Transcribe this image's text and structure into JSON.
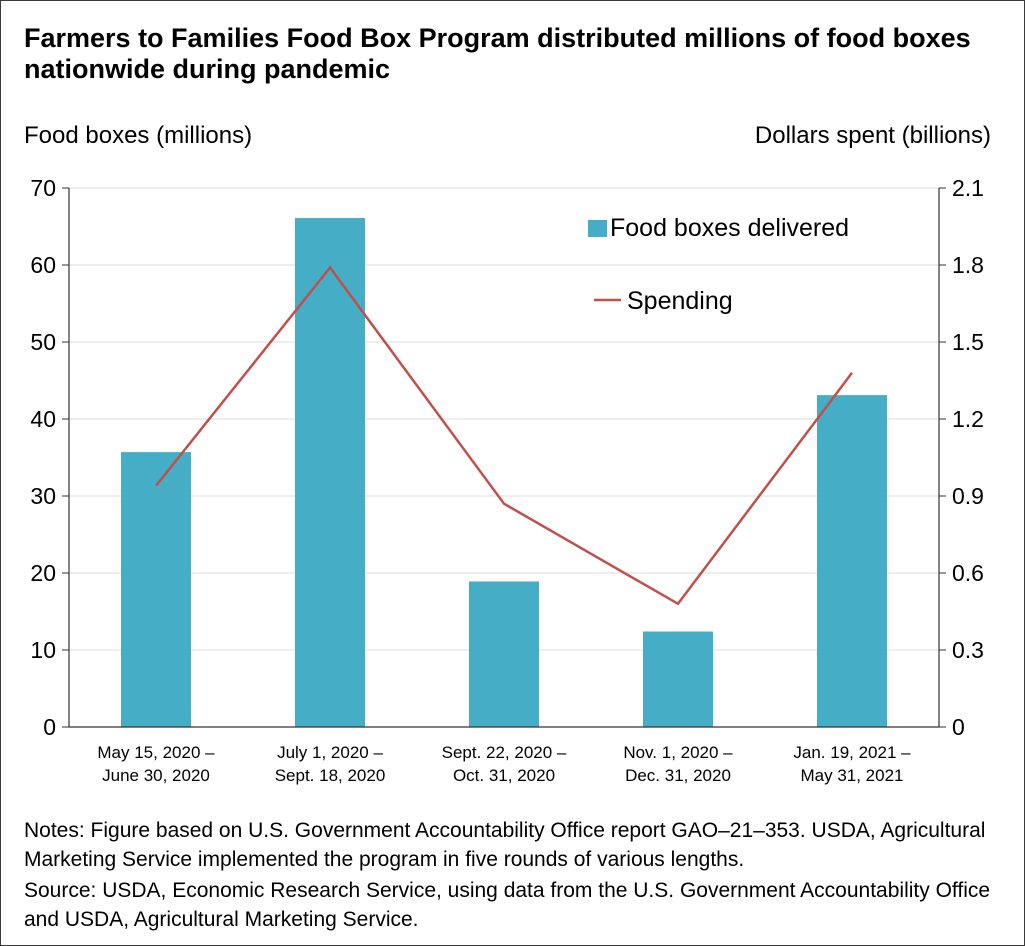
{
  "title": "Farmers to Families Food Box Program distributed millions of food boxes nationwide during pandemic",
  "notes": "Notes: Figure based on U.S. Government Accountability Office report GAO–21–353. USDA, Agricultural Marketing Service implemented the program in five rounds of various lengths.",
  "source": "Source: USDA, Economic Research Service, using data from the U.S. Government Accountability Office and USDA, Agricultural Marketing Service.",
  "colors": {
    "bar": "#45aec6",
    "line": "#c0504d",
    "axis": "#333333",
    "grid": "#dcdcdc"
  },
  "chart_data": {
    "type": "bar",
    "title": "Farmers to Families Food Box Program distributed millions of food boxes nationwide during pandemic",
    "categories": [
      [
        "May 15, 2020 –",
        "June 30, 2020"
      ],
      [
        "July 1, 2020 –",
        "Sept. 18, 2020"
      ],
      [
        "Sept. 22, 2020 –",
        "Oct. 31, 2020"
      ],
      [
        "Nov. 1, 2020 –",
        "Dec. 31, 2020"
      ],
      [
        "Jan. 19, 2021 –",
        "May 31, 2021"
      ]
    ],
    "ylabel": "Food boxes (millions)",
    "y2label": "Dollars spent (billions)",
    "ylim": [
      0,
      70
    ],
    "y2lim": [
      0,
      2.1
    ],
    "yticks": [
      "0",
      "10",
      "20",
      "30",
      "40",
      "50",
      "60",
      "70"
    ],
    "y2ticks": [
      "0",
      "0.3",
      "0.6",
      "0.9",
      "1.2",
      "1.5",
      "1.8",
      "2.1"
    ],
    "grid": true,
    "legend_position": "top-right",
    "series": [
      {
        "name": "Food boxes delivered",
        "type": "bar",
        "axis": "left",
        "values": [
          35.7,
          66.1,
          18.9,
          12.4,
          43.1
        ]
      },
      {
        "name": "Spending",
        "type": "line",
        "axis": "right",
        "values": [
          0.94,
          1.79,
          0.87,
          0.48,
          1.38
        ]
      }
    ]
  }
}
